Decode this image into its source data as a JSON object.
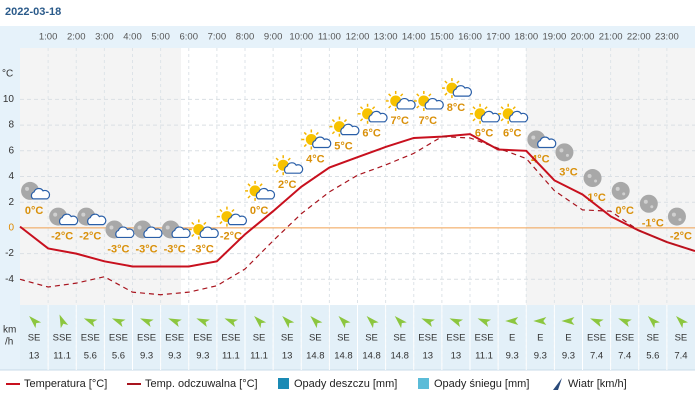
{
  "title": "2022-03-18",
  "chart_data": {
    "type": "line",
    "y_label": "°C",
    "wind_unit": [
      "km",
      "/h"
    ],
    "x": [
      0,
      1,
      2,
      3,
      4,
      5,
      6,
      7,
      8,
      9,
      10,
      11,
      12,
      13,
      14,
      15,
      16,
      17,
      18,
      19,
      20,
      21,
      22,
      23,
      24
    ],
    "xlim": [
      0,
      24
    ],
    "xticks": [
      {
        "value": 1,
        "label": "1:00"
      },
      {
        "value": 2,
        "label": "2:00"
      },
      {
        "value": 3,
        "label": "3:00"
      },
      {
        "value": 4,
        "label": "4:00"
      },
      {
        "value": 5,
        "label": "5:00"
      },
      {
        "value": 6,
        "label": "6:00"
      },
      {
        "value": 7,
        "label": "7:00"
      },
      {
        "value": 8,
        "label": "8:00"
      },
      {
        "value": 9,
        "label": "9:00"
      },
      {
        "value": 10,
        "label": "10:00"
      },
      {
        "value": 11,
        "label": "11:00"
      },
      {
        "value": 12,
        "label": "12:00"
      },
      {
        "value": 13,
        "label": "13:00"
      },
      {
        "value": 14,
        "label": "14:00"
      },
      {
        "value": 15,
        "label": "15:00"
      },
      {
        "value": 16,
        "label": "16:00"
      },
      {
        "value": 17,
        "label": "17:00"
      },
      {
        "value": 18,
        "label": "18:00"
      },
      {
        "value": 19,
        "label": "19:00"
      },
      {
        "value": 20,
        "label": "20:00"
      },
      {
        "value": 21,
        "label": "21:00"
      },
      {
        "value": 22,
        "label": "22:00"
      },
      {
        "value": 23,
        "label": "23:00"
      }
    ],
    "ylim": [
      -6,
      14
    ],
    "yticks": [
      -4,
      -2,
      0,
      2,
      4,
      6,
      8,
      10
    ],
    "grid": true,
    "series": [
      {
        "name": "Temperatura [°C]",
        "color": "#c8101e",
        "dashed": false,
        "values": [
          0.1,
          -1.6,
          -2.0,
          -2.6,
          -3.0,
          -3.0,
          -3.0,
          -2.6,
          -0.5,
          1.3,
          3.2,
          4.7,
          5.5,
          6.3,
          7.0,
          7.1,
          7.3,
          6.1,
          6.0,
          3.7,
          2.6,
          0.9,
          -0.2,
          -1.1,
          -1.8
        ]
      },
      {
        "name": "Temp. odczuwalna [°C]",
        "color": "#a8141e",
        "dashed": true,
        "values": [
          -4.0,
          -4.6,
          -4.3,
          -3.8,
          -5.0,
          -5.2,
          -5.0,
          -4.5,
          -3.2,
          -1.0,
          1.1,
          2.8,
          4.1,
          4.9,
          5.8,
          7.1,
          7.0,
          6.2,
          5.4,
          2.9,
          1.4,
          1.3,
          -0.2,
          -1.1,
          -1.8
        ]
      }
    ],
    "legend_extra": [
      {
        "name": "Opady deszczu [mm]",
        "color": "#1a8ab4"
      },
      {
        "name": "Opady śniegu [mm]",
        "color": "#5bbcd8"
      },
      {
        "name": "Wiatr [km/h]",
        "color": "#2a4a7a"
      }
    ],
    "columns": [
      {
        "temp_label": "0°C",
        "wind_dir": "SE",
        "wind": 13
      },
      {
        "temp_label": "-2°C",
        "wind_dir": "SSE",
        "wind": 11.1
      },
      {
        "temp_label": "-2°C",
        "wind_dir": "ESE",
        "wind": 5.6
      },
      {
        "temp_label": "-3°C",
        "wind_dir": "ESE",
        "wind": 5.6
      },
      {
        "temp_label": "-3°C",
        "wind_dir": "ESE",
        "wind": 9.3
      },
      {
        "temp_label": "-3°C",
        "wind_dir": "ESE",
        "wind": 9.3
      },
      {
        "temp_label": "-3°C",
        "wind_dir": "ESE",
        "wind": 9.3
      },
      {
        "temp_label": "-2°C",
        "wind_dir": "ESE",
        "wind": 11.1
      },
      {
        "temp_label": "0°C",
        "wind_dir": "SE",
        "wind": 11.1
      },
      {
        "temp_label": "2°C",
        "wind_dir": "SE",
        "wind": 13
      },
      {
        "temp_label": "4°C",
        "wind_dir": "SE",
        "wind": 14.8
      },
      {
        "temp_label": "5°C",
        "wind_dir": "SE",
        "wind": 14.8
      },
      {
        "temp_label": "6°C",
        "wind_dir": "SE",
        "wind": 14.8
      },
      {
        "temp_label": "7°C",
        "wind_dir": "SE",
        "wind": 14.8
      },
      {
        "temp_label": "7°C",
        "wind_dir": "ESE",
        "wind": 13
      },
      {
        "temp_label": "8°C",
        "wind_dir": "ESE",
        "wind": 13
      },
      {
        "temp_label": "6°C",
        "wind_dir": "ESE",
        "wind": 11.1
      },
      {
        "temp_label": "6°C",
        "wind_dir": "E",
        "wind": 9.3
      },
      {
        "temp_label": "4°C",
        "wind_dir": "E",
        "wind": 9.3
      },
      {
        "temp_label": "3°C",
        "wind_dir": "E",
        "wind": 9.3
      },
      {
        "temp_label": "1°C",
        "wind_dir": "ESE",
        "wind": 7.4
      },
      {
        "temp_label": "0°C",
        "wind_dir": "ESE",
        "wind": 7.4
      },
      {
        "temp_label": "-1°C",
        "wind_dir": "SE",
        "wind": 5.6
      },
      {
        "temp_label": "-2°C",
        "wind_dir": "SE",
        "wind": 7.4
      }
    ]
  }
}
